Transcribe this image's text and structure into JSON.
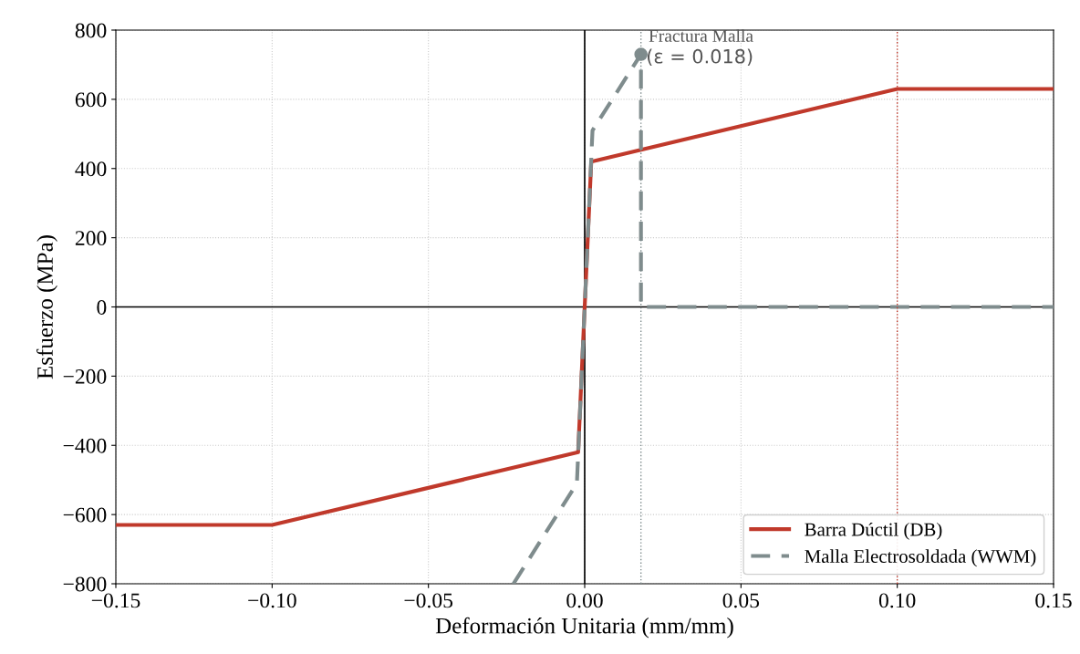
{
  "chart_data": {
    "type": "line",
    "xlabel": "Deformación Unitaria (mm/mm)",
    "ylabel": "Esfuerzo (MPa)",
    "xlim": [
      -0.15,
      0.15
    ],
    "xticks": [
      {
        "value": -0.15,
        "label": "−0.15"
      },
      {
        "value": -0.1,
        "label": "−0.10"
      },
      {
        "value": -0.05,
        "label": "−0.05"
      },
      {
        "value": 0.0,
        "label": "0.00"
      },
      {
        "value": 0.05,
        "label": "0.05"
      },
      {
        "value": 0.1,
        "label": "0.10"
      },
      {
        "value": 0.15,
        "label": "0.15"
      }
    ],
    "ylim": [
      -800,
      800
    ],
    "yticks": [
      {
        "value": -800,
        "label": "−800"
      },
      {
        "value": -600,
        "label": "−600"
      },
      {
        "value": -400,
        "label": "−400"
      },
      {
        "value": -200,
        "label": "−200"
      },
      0,
      200,
      400,
      600,
      800
    ],
    "grid": true,
    "legend": "bottom right",
    "series": [
      {
        "name": "Barra Dúctil (DB)",
        "color": "#c0392b",
        "line_style": "solid",
        "x": [
          -0.15,
          -0.1,
          -0.0021,
          0.0021,
          0.1,
          0.15
        ],
        "values": [
          -630,
          -630,
          -420,
          420,
          630,
          630
        ]
      },
      {
        "name": "Malla Electrosoldada (WWM)",
        "color": "#7f8c8d",
        "line_style": "dashed",
        "x": [
          -0.0228,
          -0.0025,
          0.0025,
          0.018,
          0.018,
          0.15
        ],
        "values": [
          -800,
          -510,
          510,
          730,
          0,
          0
        ]
      },
      {
        "type": "scatter",
        "marker": "circle",
        "color": "#7f8c8d",
        "x": [
          0.018
        ],
        "values": [
          730
        ]
      }
    ],
    "ref_lines": [
      {
        "axis": "x",
        "value": 0.018,
        "color": "#7f8c8d",
        "line_style": "dotted"
      },
      {
        "axis": "x",
        "value": 0.1,
        "color": "#c0392b",
        "line_style": "dotted"
      }
    ],
    "annotations": [
      {
        "text": "Fractura Malla",
        "x": 0.018,
        "y": 730
      },
      "(ε = 0.018)"
    ]
  }
}
